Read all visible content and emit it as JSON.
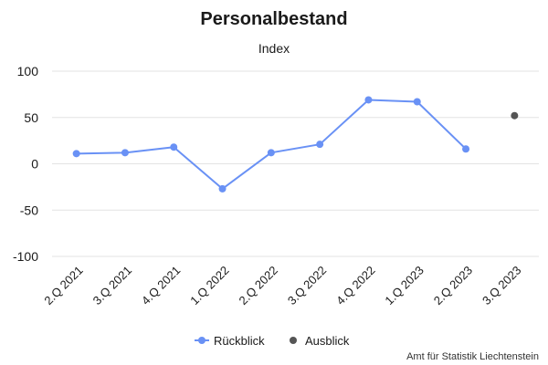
{
  "chart_data": {
    "type": "line",
    "title": "Personalbestand",
    "subtitle": "Index",
    "categories": [
      "2.Q 2021",
      "3.Q 2021",
      "4.Q 2021",
      "1.Q 2022",
      "2.Q 2022",
      "3.Q 2022",
      "4.Q 2022",
      "1.Q 2023",
      "2.Q 2023",
      "3.Q 2023"
    ],
    "yticks": [
      100,
      50,
      0,
      -50,
      -100
    ],
    "ylim": [
      -100,
      100
    ],
    "grid": true,
    "legend_position": "bottom-center",
    "series": [
      {
        "name": "Rückblick",
        "color": "#6991f5",
        "line": true,
        "values": [
          11,
          12,
          18,
          -27,
          12,
          21,
          69,
          67,
          16,
          null
        ]
      },
      {
        "name": "Ausblick",
        "color": "#555555",
        "line": false,
        "values": [
          null,
          null,
          null,
          null,
          null,
          null,
          null,
          null,
          null,
          52
        ]
      }
    ],
    "credit": "Amt für Statistik Liechtenstein"
  }
}
